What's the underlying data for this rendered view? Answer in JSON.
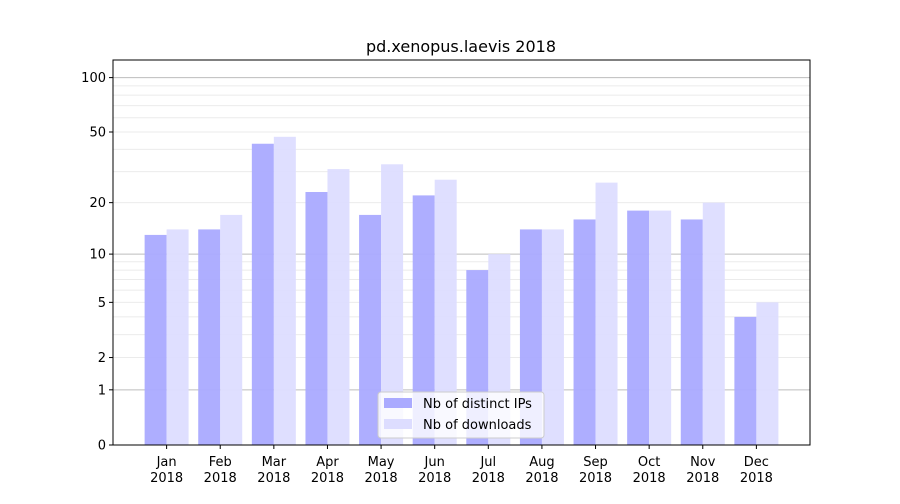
{
  "chart_data": {
    "type": "bar",
    "title": "pd.xenopus.laevis 2018",
    "xlabel": "",
    "ylabel": "",
    "yscale": "log10(y+1)",
    "ylim": [
      0,
      125
    ],
    "yticks": [
      0,
      1,
      2,
      5,
      10,
      20,
      50,
      100
    ],
    "ytick_labels": [
      "0",
      "1",
      "2",
      "5",
      "10",
      "20",
      "50",
      "100"
    ],
    "grid": true,
    "legend_position": "lower-center",
    "categories": [
      "Jan\n2018",
      "Feb\n2018",
      "Mar\n2018",
      "Apr\n2018",
      "May\n2018",
      "Jun\n2018",
      "Jul\n2018",
      "Aug\n2018",
      "Sep\n2018",
      "Oct\n2018",
      "Nov\n2018",
      "Dec\n2018"
    ],
    "category_lines": [
      [
        "Jan",
        "2018"
      ],
      [
        "Feb",
        "2018"
      ],
      [
        "Mar",
        "2018"
      ],
      [
        "Apr",
        "2018"
      ],
      [
        "May",
        "2018"
      ],
      [
        "Jun",
        "2018"
      ],
      [
        "Jul",
        "2018"
      ],
      [
        "Aug",
        "2018"
      ],
      [
        "Sep",
        "2018"
      ],
      [
        "Oct",
        "2018"
      ],
      [
        "Nov",
        "2018"
      ],
      [
        "Dec",
        "2018"
      ]
    ],
    "series": [
      {
        "name": "Nb of distinct IPs",
        "color": "#aaaaff",
        "values": [
          13,
          14,
          43,
          23,
          17,
          22,
          8,
          14,
          16,
          18,
          16,
          4
        ]
      },
      {
        "name": "Nb of downloads",
        "color": "#ddddff",
        "values": [
          14,
          17,
          47,
          31,
          33,
          27,
          10,
          14,
          26,
          18,
          20,
          5
        ]
      }
    ]
  }
}
